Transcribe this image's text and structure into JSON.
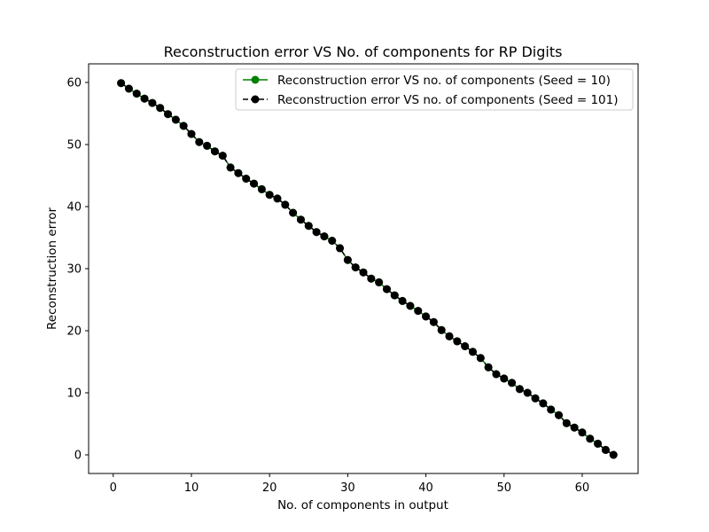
{
  "chart_data": {
    "type": "line",
    "title": "Reconstruction error VS No. of components for RP Digits",
    "xlabel": "No. of components in output",
    "ylabel": "Reconstruction error",
    "xlim": [
      -3.15,
      67.15
    ],
    "ylim": [
      -3.0,
      63.0
    ],
    "xticks": [
      0,
      10,
      20,
      30,
      40,
      50,
      60
    ],
    "yticks": [
      0,
      10,
      20,
      30,
      40,
      50,
      60
    ],
    "grid": false,
    "legend_position": "top-right",
    "x": [
      1,
      2,
      3,
      4,
      5,
      6,
      7,
      8,
      9,
      10,
      11,
      12,
      13,
      14,
      15,
      16,
      17,
      18,
      19,
      20,
      21,
      22,
      23,
      24,
      25,
      26,
      27,
      28,
      29,
      30,
      31,
      32,
      33,
      34,
      35,
      36,
      37,
      38,
      39,
      40,
      41,
      42,
      43,
      44,
      45,
      46,
      47,
      48,
      49,
      50,
      51,
      52,
      53,
      54,
      55,
      56,
      57,
      58,
      59,
      60,
      61,
      62,
      63,
      64
    ],
    "series": [
      {
        "name": "Reconstruction error VS no. of components (Seed = 10)",
        "color": "#008000",
        "linestyle": "solid",
        "marker": "circle",
        "values": [
          59.9,
          59.0,
          58.2,
          57.4,
          56.7,
          55.9,
          54.9,
          54.0,
          53.0,
          51.7,
          50.4,
          49.8,
          48.9,
          48.2,
          46.3,
          45.4,
          44.5,
          43.7,
          42.8,
          41.9,
          41.3,
          40.3,
          39.0,
          37.9,
          36.9,
          35.9,
          35.2,
          34.5,
          33.3,
          31.4,
          30.2,
          29.4,
          28.4,
          27.8,
          26.7,
          25.7,
          24.8,
          24.0,
          23.2,
          22.3,
          21.4,
          20.1,
          19.1,
          18.3,
          17.5,
          16.6,
          15.6,
          14.1,
          13.0,
          12.3,
          11.6,
          10.6,
          10.0,
          9.1,
          8.3,
          7.3,
          6.4,
          5.1,
          4.4,
          3.6,
          2.6,
          1.8,
          0.8,
          0.0
        ]
      },
      {
        "name": "Reconstruction error VS no. of components (Seed = 101)",
        "color": "#000000",
        "linestyle": "dashed",
        "marker": "circle",
        "values": [
          59.9,
          59.0,
          58.2,
          57.4,
          56.7,
          55.9,
          54.9,
          54.0,
          53.0,
          51.7,
          50.4,
          49.8,
          48.9,
          48.2,
          46.3,
          45.4,
          44.5,
          43.7,
          42.8,
          41.9,
          41.3,
          40.3,
          39.0,
          37.9,
          36.9,
          35.9,
          35.2,
          34.5,
          33.3,
          31.4,
          30.2,
          29.4,
          28.4,
          27.8,
          26.7,
          25.7,
          24.8,
          24.0,
          23.2,
          22.3,
          21.4,
          20.1,
          19.1,
          18.3,
          17.5,
          16.6,
          15.6,
          14.1,
          13.0,
          12.3,
          11.6,
          10.6,
          10.0,
          9.1,
          8.3,
          7.3,
          6.4,
          5.1,
          4.4,
          3.6,
          2.6,
          1.8,
          0.8,
          0.0
        ]
      }
    ]
  }
}
